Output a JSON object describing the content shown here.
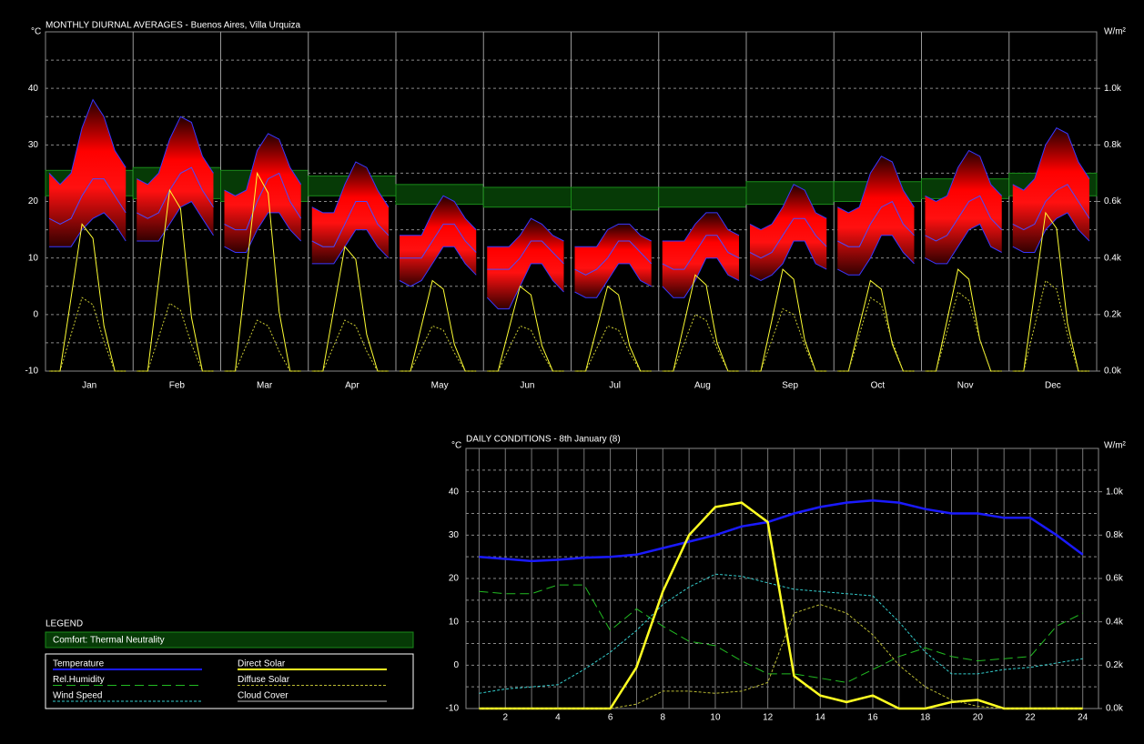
{
  "chart_data": [
    {
      "type": "diurnal",
      "title": "MONTHLY DIURNAL AVERAGES - Buenos Aires, Villa Urquiza",
      "y_unit": "°C",
      "y2_unit": "W/m²",
      "ylim": [
        -10,
        50
      ],
      "yticks": [
        -10,
        0,
        10,
        20,
        30,
        40
      ],
      "minor_yticks": [
        -5,
        5,
        15,
        25,
        35,
        45
      ],
      "y2lim": [
        0,
        1200
      ],
      "y2ticks": [
        {
          "value": 0,
          "label": "0.0k"
        },
        {
          "value": 200,
          "label": "0.2k"
        },
        {
          "value": 400,
          "label": "0.4k"
        },
        {
          "value": 600,
          "label": "0.6k"
        },
        {
          "value": 800,
          "label": "0.8k"
        },
        {
          "value": 1000,
          "label": "1.0k"
        }
      ],
      "hour_range": [
        0,
        24
      ],
      "hours": [
        1,
        4,
        7,
        10,
        13,
        16,
        19,
        22
      ],
      "colors": {
        "band": "#ff0000",
        "edge": "#3838ff",
        "avg": "#4a4aff",
        "comfort": "#063a06",
        "direct": "#ffff33",
        "diffuse": "#cccc33"
      },
      "months": [
        {
          "label": "Jan",
          "temp": [
            17,
            16,
            17,
            21,
            24,
            24,
            21,
            18
          ],
          "temp_min": [
            12,
            12,
            12,
            15,
            17,
            18,
            16,
            13
          ],
          "temp_max": [
            25,
            23,
            25,
            33,
            38,
            35,
            29,
            26
          ],
          "comfort": [
            21,
            25.5
          ],
          "direct": [
            0,
            0,
            260,
            520,
            470,
            160,
            0,
            0
          ],
          "diffuse": [
            0,
            0,
            130,
            260,
            235,
            105,
            0,
            0
          ]
        },
        {
          "label": "Feb",
          "temp": [
            18,
            17,
            18,
            22,
            25,
            26,
            22,
            19
          ],
          "temp_min": [
            13,
            13,
            13,
            16,
            19,
            20,
            17,
            14
          ],
          "temp_max": [
            24,
            23,
            25,
            31,
            35,
            34,
            28,
            25
          ],
          "comfort": [
            20.5,
            26
          ],
          "direct": [
            0,
            0,
            320,
            640,
            575,
            190,
            0,
            0
          ],
          "diffuse": [
            0,
            0,
            120,
            240,
            215,
            95,
            0,
            0
          ]
        },
        {
          "label": "Mar",
          "temp": [
            16,
            15,
            15,
            20,
            24,
            25,
            20,
            17
          ],
          "temp_min": [
            12,
            11,
            11,
            15,
            18,
            18,
            15,
            13
          ],
          "temp_max": [
            22,
            21,
            22,
            29,
            32,
            31,
            26,
            23
          ],
          "comfort": [
            20,
            25.5
          ],
          "direct": [
            0,
            0,
            350,
            700,
            630,
            210,
            0,
            0
          ],
          "diffuse": [
            0,
            0,
            90,
            180,
            160,
            70,
            0,
            0
          ]
        },
        {
          "label": "Apr",
          "temp": [
            13,
            12,
            12,
            16,
            20,
            20,
            16,
            14
          ],
          "temp_min": [
            9,
            9,
            9,
            12,
            15,
            15,
            12,
            10
          ],
          "temp_max": [
            19,
            18,
            18,
            23,
            27,
            26,
            22,
            19
          ],
          "comfort": [
            21,
            24.5
          ],
          "direct": [
            0,
            0,
            220,
            440,
            395,
            130,
            0,
            0
          ],
          "diffuse": [
            0,
            0,
            90,
            180,
            160,
            70,
            0,
            0
          ]
        },
        {
          "label": "May",
          "temp": [
            10,
            10,
            10,
            13,
            16,
            16,
            13,
            11
          ],
          "temp_min": [
            6,
            5,
            6,
            9,
            12,
            12,
            9,
            7
          ],
          "temp_max": [
            14,
            14,
            14,
            18,
            21,
            20,
            17,
            15
          ],
          "comfort": [
            19.5,
            23
          ],
          "direct": [
            0,
            0,
            160,
            320,
            290,
            95,
            0,
            0
          ],
          "diffuse": [
            0,
            0,
            80,
            160,
            145,
            65,
            0,
            0
          ]
        },
        {
          "label": "Jun",
          "temp": [
            8,
            8,
            8,
            10,
            13,
            13,
            11,
            9
          ],
          "temp_min": [
            3,
            1,
            1,
            5,
            9,
            9,
            6,
            4
          ],
          "temp_max": [
            12,
            12,
            12,
            14,
            17,
            16,
            14,
            13
          ],
          "comfort": [
            19,
            22.5
          ],
          "direct": [
            0,
            0,
            150,
            300,
            270,
            90,
            0,
            0
          ],
          "diffuse": [
            0,
            0,
            80,
            160,
            145,
            65,
            0,
            0
          ]
        },
        {
          "label": "Jul",
          "temp": [
            8,
            7,
            8,
            10,
            13,
            13,
            11,
            9
          ],
          "temp_min": [
            4,
            3,
            3,
            6,
            9,
            9,
            6,
            5
          ],
          "temp_max": [
            12,
            12,
            12,
            15,
            16,
            16,
            14,
            13
          ],
          "comfort": [
            18.5,
            22.5
          ],
          "direct": [
            0,
            0,
            150,
            300,
            270,
            90,
            0,
            0
          ],
          "diffuse": [
            0,
            0,
            80,
            160,
            145,
            65,
            0,
            0
          ]
        },
        {
          "label": "Aug",
          "temp": [
            9,
            8,
            8,
            11,
            14,
            14,
            11,
            10
          ],
          "temp_min": [
            5,
            3,
            3,
            6,
            10,
            10,
            7,
            6
          ],
          "temp_max": [
            13,
            13,
            13,
            16,
            18,
            18,
            15,
            14
          ],
          "comfort": [
            19,
            22.5
          ],
          "direct": [
            0,
            0,
            170,
            340,
            305,
            100,
            0,
            0
          ],
          "diffuse": [
            0,
            0,
            100,
            200,
            180,
            80,
            0,
            0
          ]
        },
        {
          "label": "Sep",
          "temp": [
            11,
            10,
            11,
            14,
            17,
            17,
            14,
            12
          ],
          "temp_min": [
            7,
            6,
            7,
            9,
            13,
            13,
            9,
            8
          ],
          "temp_max": [
            16,
            15,
            16,
            19,
            23,
            22,
            18,
            17
          ],
          "comfort": [
            19.5,
            23.5
          ],
          "direct": [
            0,
            0,
            180,
            360,
            325,
            110,
            0,
            0
          ],
          "diffuse": [
            0,
            0,
            110,
            220,
            200,
            90,
            0,
            0
          ]
        },
        {
          "label": "Oct",
          "temp": [
            13,
            12,
            12,
            16,
            19,
            20,
            16,
            14
          ],
          "temp_min": [
            8,
            7,
            7,
            10,
            14,
            14,
            11,
            9
          ],
          "temp_max": [
            19,
            18,
            19,
            25,
            28,
            27,
            22,
            19
          ],
          "comfort": [
            20,
            23.5
          ],
          "direct": [
            0,
            0,
            160,
            320,
            290,
            95,
            0,
            0
          ],
          "diffuse": [
            0,
            0,
            130,
            260,
            235,
            105,
            0,
            0
          ]
        },
        {
          "label": "Nov",
          "temp": [
            14,
            13,
            14,
            17,
            20,
            21,
            17,
            15
          ],
          "temp_min": [
            10,
            9,
            9,
            12,
            15,
            16,
            12,
            11
          ],
          "temp_max": [
            21,
            20,
            21,
            26,
            29,
            28,
            23,
            21
          ],
          "comfort": [
            20.5,
            24
          ],
          "direct": [
            0,
            0,
            180,
            360,
            325,
            110,
            0,
            0
          ],
          "diffuse": [
            0,
            0,
            140,
            280,
            250,
            110,
            0,
            0
          ]
        },
        {
          "label": "Dec",
          "temp": [
            16,
            15,
            16,
            20,
            22,
            23,
            20,
            17
          ],
          "temp_min": [
            12,
            11,
            11,
            15,
            17,
            18,
            15,
            13
          ],
          "temp_max": [
            23,
            22,
            24,
            30,
            33,
            32,
            27,
            24
          ],
          "comfort": [
            21,
            25
          ],
          "direct": [
            0,
            0,
            280,
            560,
            505,
            170,
            0,
            0
          ],
          "diffuse": [
            0,
            0,
            160,
            320,
            290,
            130,
            0,
            0
          ]
        }
      ]
    },
    {
      "type": "line",
      "title": "DAILY CONDITIONS - 8th January (8)",
      "y_unit": "°C",
      "y2_unit": "W/m²",
      "x": [
        1,
        2,
        3,
        4,
        5,
        6,
        7,
        8,
        9,
        10,
        11,
        12,
        13,
        14,
        15,
        16,
        17,
        18,
        19,
        20,
        21,
        22,
        23,
        24
      ],
      "xlim": [
        0.5,
        24.6
      ],
      "xticks": [
        2,
        4,
        6,
        8,
        10,
        12,
        14,
        16,
        18,
        20,
        22,
        24
      ],
      "ylim": [
        -10,
        50
      ],
      "yticks": [
        -10,
        0,
        10,
        20,
        30,
        40
      ],
      "minor_yticks": [
        -5,
        5,
        15,
        25,
        35,
        45
      ],
      "y2lim": [
        0,
        1200
      ],
      "y2ticks": [
        {
          "value": 0,
          "label": "0.0k"
        },
        {
          "value": 200,
          "label": "0.2k"
        },
        {
          "value": 400,
          "label": "0.4k"
        },
        {
          "value": 600,
          "label": "0.6k"
        },
        {
          "value": 800,
          "label": "0.8k"
        },
        {
          "value": 1000,
          "label": "1.0k"
        }
      ],
      "series": [
        {
          "name": "Temperature",
          "color": "#1a1aff",
          "width": 2.5,
          "dash": "",
          "values": [
            25,
            24.5,
            24,
            24.3,
            24.8,
            25,
            25.5,
            27,
            28.5,
            30,
            32,
            33,
            35,
            36.5,
            37.5,
            38,
            37.5,
            36,
            35,
            35,
            34,
            34,
            30,
            25.5
          ]
        },
        {
          "name": "Rel.Humidity",
          "color": "#22bb22",
          "width": 1,
          "dash": "10 5",
          "values": [
            17,
            16.5,
            16.5,
            18.5,
            18.5,
            8,
            13,
            9,
            5.5,
            4.5,
            1,
            -2,
            -2,
            -3,
            -4,
            -1,
            2,
            4,
            2,
            1,
            1.5,
            2,
            9,
            12
          ]
        },
        {
          "name": "Wind Speed",
          "color": "#33cccc",
          "width": 1,
          "dash": "3 2",
          "values": [
            -6.5,
            -5.5,
            -5,
            -4.5,
            -1,
            3,
            8,
            14,
            18,
            21,
            20.5,
            19,
            17.5,
            17,
            16.5,
            16,
            10,
            3,
            -2,
            -2,
            -1,
            -0.5,
            0.5,
            1.5
          ]
        },
        {
          "name": "Direct Solar",
          "color": "#ffff22",
          "width": 2.5,
          "dash": "",
          "axis": "y2",
          "values": [
            0,
            0,
            0,
            0,
            0,
            0,
            190,
            540,
            800,
            930,
            950,
            860,
            150,
            60,
            30,
            60,
            0,
            0,
            30,
            40,
            0,
            0,
            0,
            0
          ]
        },
        {
          "name": "Diffuse Solar",
          "color": "#bbbb33",
          "width": 1,
          "dash": "3 2",
          "axis": "y2",
          "values": [
            0,
            0,
            0,
            0,
            0,
            0,
            20,
            80,
            80,
            70,
            80,
            120,
            440,
            480,
            440,
            340,
            200,
            100,
            40,
            10,
            0,
            0,
            0,
            0
          ]
        }
      ]
    }
  ],
  "legend": {
    "title": "LEGEND",
    "comfort": "Comfort: Thermal Neutrality",
    "extra": {
      "name": "Cloud Cover",
      "color": "#bbbbbb"
    }
  }
}
